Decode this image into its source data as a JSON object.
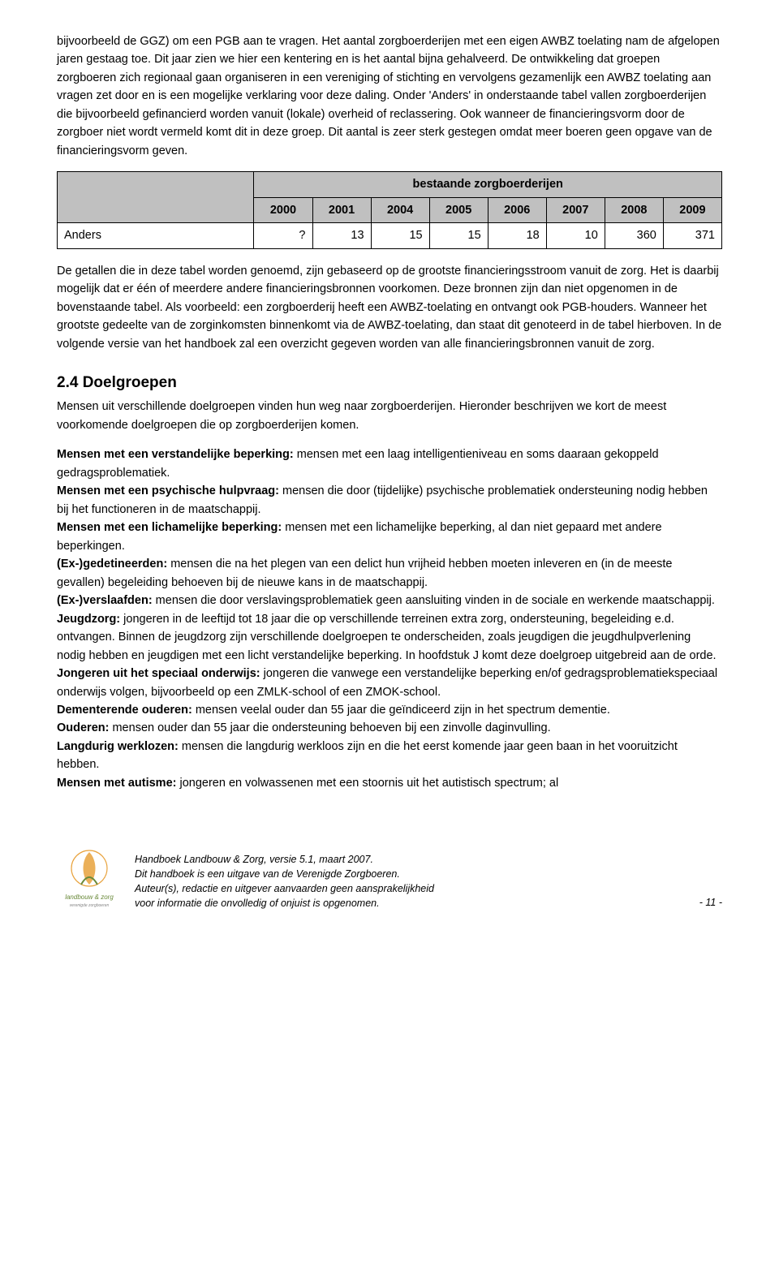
{
  "intro_paragraph": "bijvoorbeeld de GGZ) om een PGB aan te vragen. Het aantal zorgboerderijen met een eigen AWBZ toelating nam de afgelopen jaren gestaag toe. Dit jaar zien we hier een kentering en is het aantal bijna gehalveerd. De ontwikkeling dat groepen zorgboeren zich regionaal gaan organiseren in een vereniging of stichting en vervolgens gezamenlijk een AWBZ toelating aan vragen zet door en is een mogelijke verklaring voor deze daling. Onder 'Anders' in onderstaande tabel vallen zorgboerderijen die bijvoorbeeld gefinancierd worden vanuit (lokale) overheid of reclassering. Ook wanneer de financieringsvorm door de zorgboer niet wordt vermeld komt dit in deze groep. Dit aantal is zeer sterk gestegen omdat meer boeren geen opgave van de financieringsvorm geven.",
  "table": {
    "group_header": "bestaande zorgboerderijen",
    "columns": [
      "2000",
      "2001",
      "2004",
      "2005",
      "2006",
      "2007",
      "2008",
      "2009"
    ],
    "row_label": "Anders",
    "row_values": [
      "?",
      "13",
      "15",
      "15",
      "18",
      "10",
      "360",
      "371"
    ]
  },
  "after_table_paragraph": "De getallen die in deze tabel worden genoemd, zijn gebaseerd op de grootste financieringsstroom vanuit de zorg. Het is daarbij mogelijk dat er één of meerdere andere financieringsbronnen voorkomen. Deze bronnen zijn dan niet opgenomen in de bovenstaande tabel. Als voorbeeld: een zorgboerderij heeft een AWBZ-toelating en ontvangt ook PGB-houders. Wanneer het grootste gedeelte van de zorginkomsten binnenkomt via de AWBZ-toelating, dan staat dit genoteerd in de tabel hierboven. In de volgende versie van het handboek zal een overzicht gegeven worden van alle financieringsbronnen vanuit de zorg.",
  "section": {
    "title": "2.4 Doelgroepen",
    "intro": "Mensen uit verschillende doelgroepen vinden hun weg naar zorgboerderijen. Hieronder beschrijven we kort de meest voorkomende doelgroepen die op zorgboerderijen komen.",
    "items": [
      {
        "label": "Mensen met een verstandelijke beperking:",
        "text": " mensen met een laag intelligentieniveau en soms daaraan gekoppeld gedragsproblematiek."
      },
      {
        "label": "Mensen met een psychische hulpvraag:",
        "text": " mensen die door (tijdelijke) psychische problematiek ondersteuning nodig hebben bij het functioneren in de maatschappij."
      },
      {
        "label": "Mensen met een lichamelijke beperking:",
        "text": " mensen met een lichamelijke beperking, al dan niet gepaard met andere beperkingen."
      },
      {
        "label": "(Ex-)gedetineerden:",
        "text": " mensen die na het plegen van een delict hun vrijheid hebben moeten inleveren en (in de meeste gevallen) begeleiding behoeven bij de nieuwe kans in de maatschappij."
      },
      {
        "label": "(Ex-)verslaafden:",
        "text": " mensen die door verslavingsproblematiek geen aansluiting vinden in de sociale en werkende maatschappij."
      },
      {
        "label": "Jeugdzorg:",
        "text": " jongeren in de leeftijd tot 18 jaar die op verschillende terreinen extra zorg, ondersteuning, begeleiding e.d. ontvangen. Binnen de jeugdzorg zijn verschillende doelgroepen te onderscheiden, zoals jeugdigen die jeugdhulpverlening nodig hebben en jeugdigen met een licht verstandelijke beperking. In hoofdstuk J komt deze doelgroep uitgebreid aan de orde."
      },
      {
        "label": "Jongeren uit het speciaal onderwijs:",
        "text": " jongeren die vanwege een verstandelijke beperking en/of gedragsproblematiekspeciaal onderwijs volgen, bijvoorbeeld op een ZMLK-school of een ZMOK-school."
      },
      {
        "label": "Dementerende ouderen:",
        "text": " mensen veelal ouder dan 55 jaar die geïndiceerd zijn in het spectrum dementie."
      },
      {
        "label": "Ouderen:",
        "text": " mensen ouder dan 55 jaar die ondersteuning behoeven bij een zinvolle daginvulling."
      },
      {
        "label": "Langdurig werklozen:",
        "text": " mensen die langdurig werkloos zijn en die het eerst komende jaar geen baan in het vooruitzicht hebben."
      },
      {
        "label": "Mensen met  autisme:",
        "text": " jongeren en volwassenen met een stoornis uit het autistisch spectrum; al"
      }
    ]
  },
  "footer": {
    "line1": "Handboek Landbouw & Zorg, versie 5.1, maart 2007.",
    "line2": "Dit handboek is een uitgave van de Verenigde Zorgboeren.",
    "line3": "Auteur(s), redactie en uitgever aanvaarden geen aansprakelijkheid",
    "line4": "voor informatie die onvolledig of onjuist is opgenomen.",
    "page": "- 11 -",
    "logo_caption": "landbouw & zorg"
  }
}
